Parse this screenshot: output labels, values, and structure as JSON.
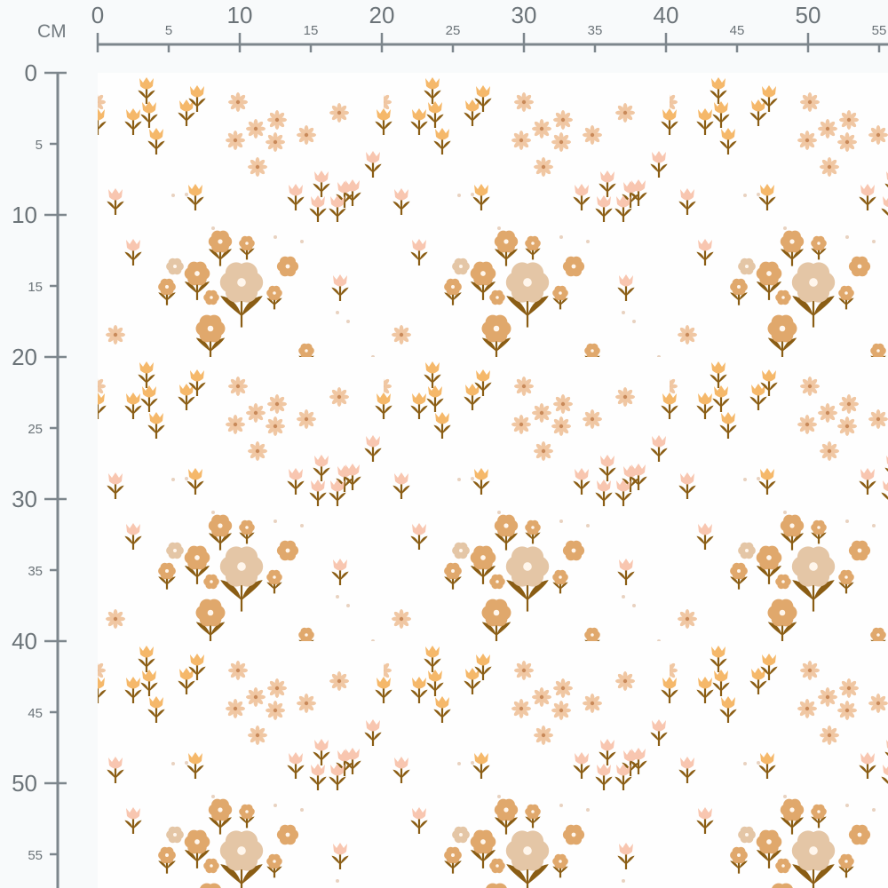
{
  "ruler": {
    "unit": "CM",
    "top_major": [
      "0",
      "10",
      "20",
      "30",
      "40",
      "50"
    ],
    "top_minor": [
      "5",
      "15",
      "25",
      "35",
      "45",
      "55"
    ],
    "left_major": [
      "0",
      "10",
      "20",
      "30",
      "40",
      "50"
    ],
    "left_minor": [
      "5",
      "15",
      "25",
      "35",
      "45",
      "55"
    ],
    "color": "#7d868c"
  },
  "fabric": {
    "background": "#fefefe",
    "colors": {
      "stem": "#8a5d14",
      "flower": "#e0a86c",
      "flower_pale": "#e4c6a6",
      "tulip_orange": "#f5b86a",
      "tulip_pink": "#f8c6b0",
      "daisy": "#f0c7a3",
      "dot": "#e8d2c0"
    }
  }
}
